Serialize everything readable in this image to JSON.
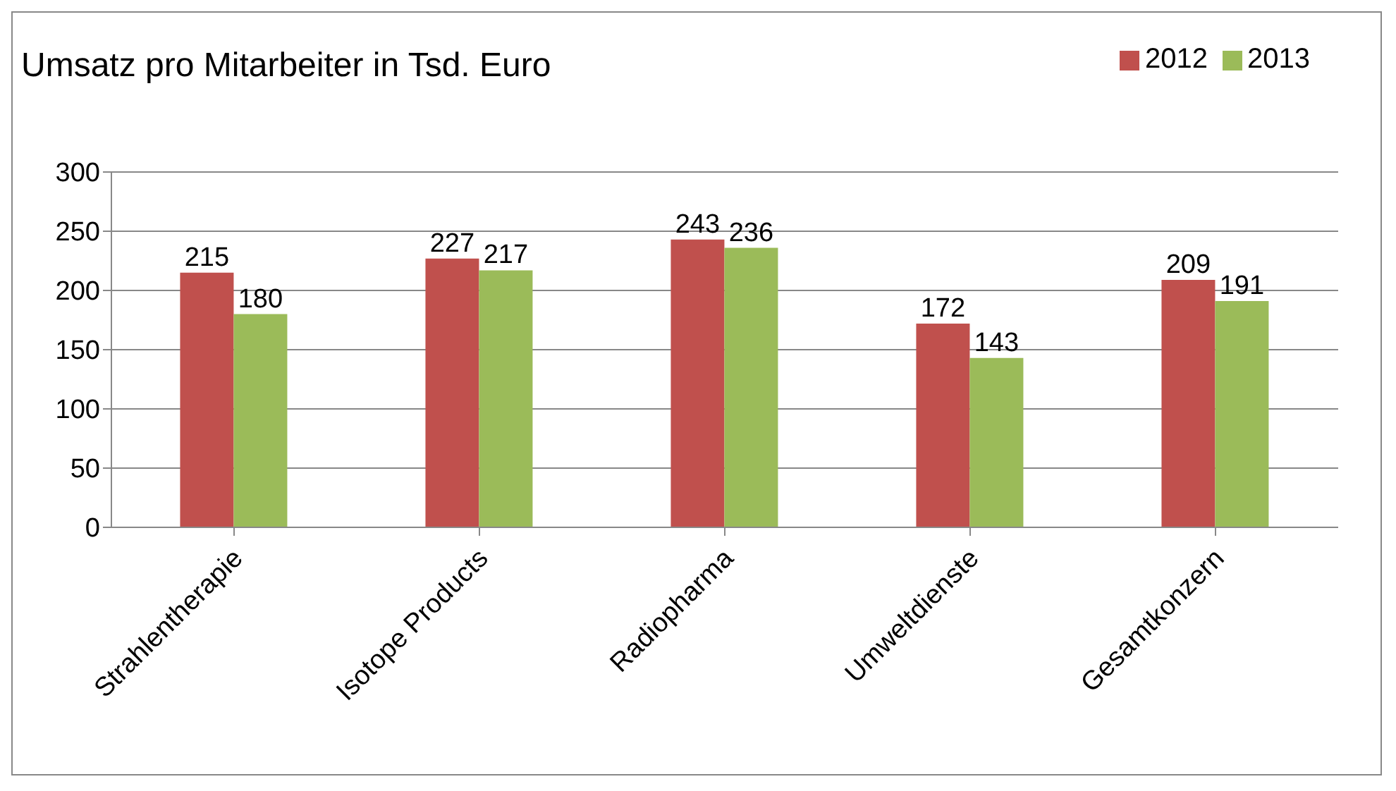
{
  "chart_data": {
    "type": "bar",
    "title": "Umsatz pro Mitarbeiter in Tsd. Euro",
    "categories": [
      "Strahlentherapie",
      "Isotope Products",
      "Radiopharma",
      "Umweltdienste",
      "Gesamtkonzern"
    ],
    "series": [
      {
        "name": "2012",
        "color": "#c0504d",
        "values": [
          215,
          227,
          243,
          172,
          209
        ]
      },
      {
        "name": "2013",
        "color": "#9bbb59",
        "values": [
          180,
          217,
          236,
          143,
          191
        ]
      }
    ],
    "ylim": [
      0,
      300
    ],
    "yticks": [
      0,
      50,
      100,
      150,
      200,
      250,
      300
    ],
    "grid": "y",
    "legend": "top right",
    "data_labels": true
  }
}
